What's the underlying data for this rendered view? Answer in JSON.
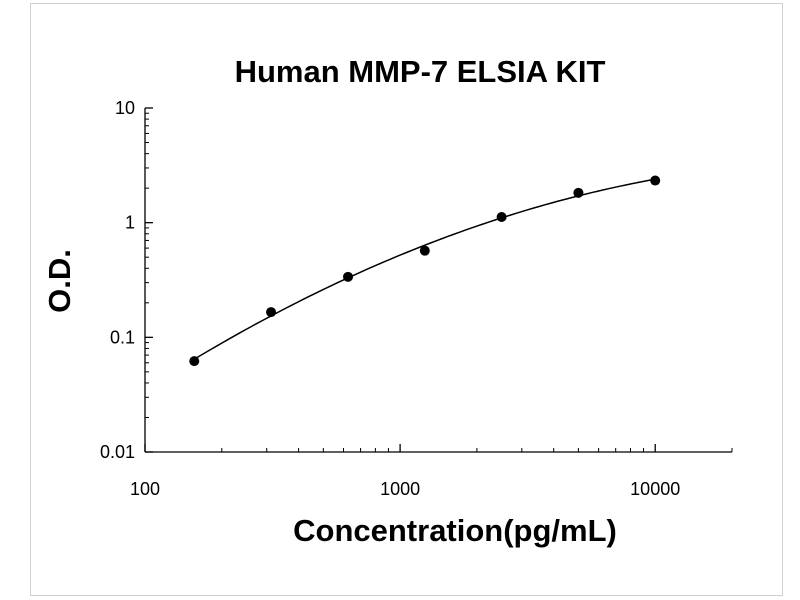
{
  "chart_data": {
    "type": "scatter",
    "title": "Human MMP-7 ELSIA KIT",
    "xlabel": "Concentration(pg/mL)",
    "ylabel": "O.D.",
    "x_scale": "log",
    "y_scale": "log",
    "xlim": [
      100,
      20000
    ],
    "ylim": [
      0.01,
      10
    ],
    "x_ticks": [
      "100",
      "1000",
      "10000"
    ],
    "y_ticks": [
      "10",
      "1",
      "0.1",
      "0.01"
    ],
    "grid": false,
    "legend": "none",
    "series": [
      {
        "values": [
          {
            "x": 156,
            "y": 0.062
          },
          {
            "x": 312,
            "y": 0.166
          },
          {
            "x": 625,
            "y": 0.337
          },
          {
            "x": 1250,
            "y": 0.57
          },
          {
            "x": 2500,
            "y": 1.12
          },
          {
            "x": 5000,
            "y": 1.82
          },
          {
            "x": 10000,
            "y": 2.33
          }
        ],
        "trendline": "fitted curve",
        "color": "#000000"
      }
    ]
  }
}
